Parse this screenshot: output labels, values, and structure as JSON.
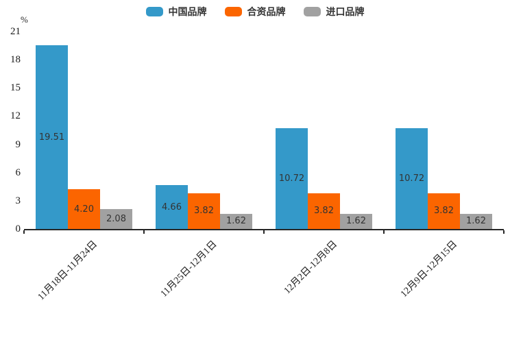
{
  "chart_data": {
    "type": "bar",
    "title": "",
    "unit_label": "%",
    "categories": [
      "11月18日-11月24日",
      "11月25日-12月1日",
      "12月2日-12月8日",
      "12月9日-12月15日"
    ],
    "series": [
      {
        "name": "中国品牌",
        "color": "#3499C9",
        "values": [
          19.51,
          4.66,
          10.72,
          10.72
        ],
        "labels": [
          "19.51",
          "4.66",
          "10.72",
          "10.72"
        ]
      },
      {
        "name": "合资品牌",
        "color": "#FB6500",
        "values": [
          4.2,
          3.82,
          3.82,
          3.82
        ],
        "labels": [
          "4.20",
          "3.82",
          "3.82",
          "3.82"
        ]
      },
      {
        "name": "进口品牌",
        "color": "#A1A1A1",
        "values": [
          2.08,
          1.62,
          1.62,
          1.62
        ],
        "labels": [
          "2.08",
          "1.62",
          "1.62",
          "1.62"
        ]
      }
    ],
    "y_ticks": [
      "0",
      "3",
      "6",
      "9",
      "12",
      "15",
      "18",
      "21"
    ],
    "ylim": [
      0,
      21
    ],
    "legend_position": "top",
    "grid": false,
    "bar_label_position": "inside-center",
    "x_label_rotation": 45,
    "axis_color": "#262626",
    "text_color": "#333333"
  }
}
